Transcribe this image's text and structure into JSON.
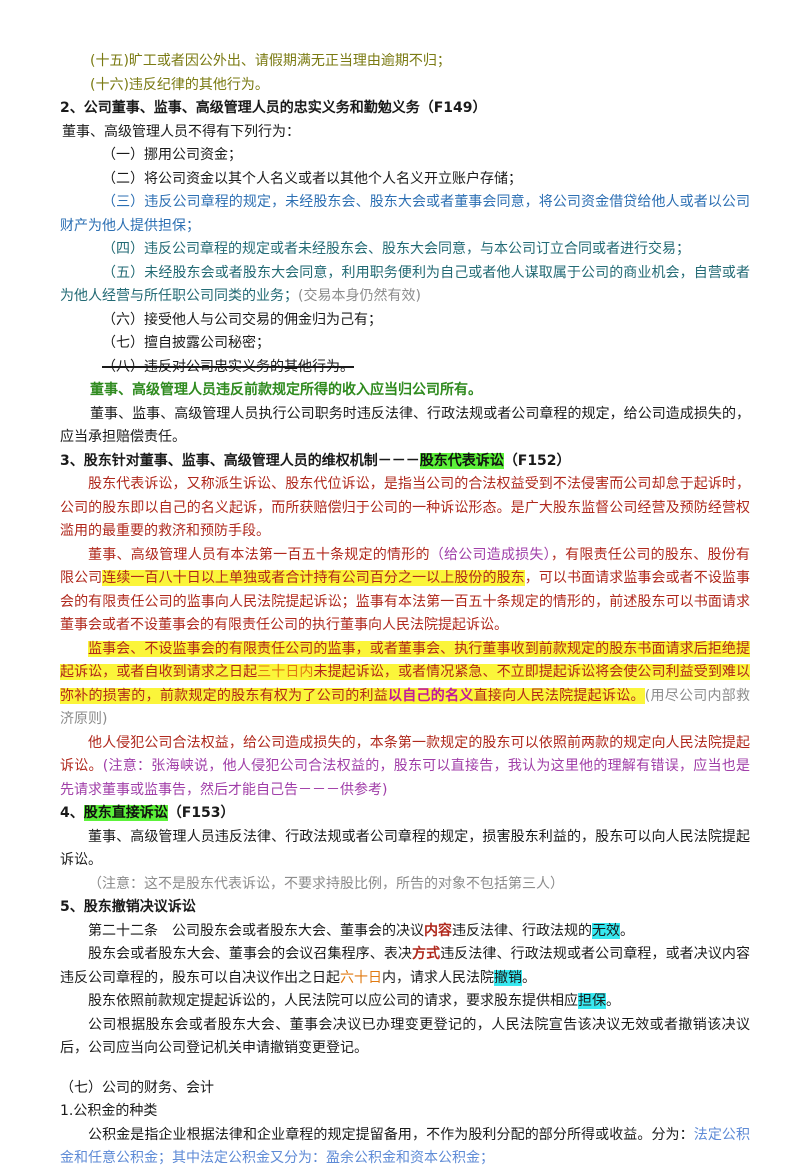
{
  "header_lines": [
    "(十五)旷工或者因公外出、请假期满无正当理由逾期不归；",
    "(十六)违反纪律的其他行为。"
  ],
  "s2": {
    "title": "2、公司董事、监事、高级管理人员的忠实义务和勤勉义务（F149）",
    "intro": "董事、高级管理人员不得有下列行为：",
    "i1": "（一）挪用公司资金；",
    "i2": "（二）将公司资金以其个人名义或者以其他个人名义开立账户存储；",
    "i3": "（三）违反公司章程的规定，未经股东会、股东大会或者董事会同意，将公司资金借贷给他人或者以公司财产为他人提供担保；",
    "i4": "（四）违反公司章程的规定或者未经股东会、股东大会同意，与本公司订立合同或者进行交易；",
    "i5": "（五）未经股东会或者股东大会同意，利用职务便利为自己或者他人谋取属于公司的商业机会，自营或者为他人经营与所任职公司同类的业务；",
    "i5_note": "(交易本身仍然有效)",
    "i6": "（六）接受他人与公司交易的佣金归为己有；",
    "i7": "（七）擅自披露公司秘密；",
    "i8": "（八）违反对公司忠实义务的其他行为。",
    "income": "董事、高级管理人员违反前款规定所得的收入应当归公司所有。",
    "liability": "董事、监事、高级管理人员执行公司职务时违反法律、行政法规或者公司章程的规定，给公司造成损失的，应当承担赔偿责任。"
  },
  "s3": {
    "title_a": "3、股东针对董事、监事、高级管理人员的维权机制－－－",
    "title_hl": "股东代表诉讼",
    "title_b": "（F152）",
    "def": "股东代表诉讼，又称派生诉讼、股东代位诉讼，是指当公司的合法权益受到不法侵害而公司却怠于起诉时，公司的股东即以自己的名义起诉，而所获赔偿归于公司的一种诉讼形态。是广大股东监督公司经营及预防经营权滥用的最重要的救济和预防手段。",
    "p2_a": "董事、高级管理人员有本法第一百五十条规定的情形的",
    "p2_b": "（给公司造成损失）",
    "p2_c": "，有限责任公司的股东、股份有限公司",
    "p2_d": "连续一百八十日以上单独或者合计持有公司百分之一以上股份的股东",
    "p2_e": "，可以书面请求监事会或者不设监事会的有限责任公司的监事向人民法院提起诉讼；监事有本法第一百五十条规定的情形的，前述股东可以书面请求董事会或者不设董事会的有限责任公司的执行董事向人民法院提起诉讼。",
    "p3_a": "监事会、不设监事会的有限责任公司的监事，或者董事会、执行董事收到前款规定的股东书面请求后拒绝提起诉讼，或者自收到请求之日起",
    "p3_b": "三十日内",
    "p3_c": "未提起诉讼，或者情况紧急、不立即提起诉讼将会使公司利益受到难以弥补的损害的，前款规定的股东有权为了公司的利益",
    "p3_d": "以自己的名义",
    "p3_e": "直接向人民法院提起诉讼。",
    "p3_note": "(用尽公司内部救济原则)",
    "p4_a": "他人侵犯公司合法权益，给公司造成损失的，本条第一款规定的股东可以依照前两款的规定向人民法院提起诉讼。",
    "p4_note": "(注意：张海峡说，他人侵犯公司合法权益的，股东可以直接告，我认为这里他的理解有错误，应当也是先请求董事或监事告，然后才能自己告－－－供参考)"
  },
  "s4": {
    "num": "4、",
    "title_hl": "股东直接诉讼",
    "title_b": "（F153）",
    "body": "董事、高级管理人员违反法律、行政法规或者公司章程的规定，损害股东利益的，股东可以向人民法院提起诉讼。",
    "note": "（注意：这不是股东代表诉讼，不要求持股比例，所告的对象不包括第三人）"
  },
  "s5": {
    "title": "5、股东撤销决议诉讼",
    "p1_a": "第二十二条　公司股东会或者股东大会、董事会的决议",
    "p1_b": "内容",
    "p1_c": "违反法律、行政法规的",
    "p1_d": "无效",
    "p1_e": "。",
    "p2_a": "股东会或者股东大会、董事会的会议召集程序、表决",
    "p2_b": "方式",
    "p2_c": "违反法律、行政法规或者公司章程，或者决议内容违反公司章程的，股东可以自决议作出之日起",
    "p2_d": "六十日",
    "p2_e": "内，请求人民法院",
    "p2_f": "撤销",
    "p2_g": "。",
    "p3_a": "股东依照前款规定提起诉讼的，人民法院可以应公司的请求，要求股东提供相应",
    "p3_b": "担保",
    "p3_c": "。",
    "p4": "公司根据股东会或者股东大会、董事会决议已办理变更登记的，人民法院宣告该决议无效或者撤销该决议后，公司应当向公司登记机关申请撤销变更登记。"
  },
  "s7": {
    "title": "（七）公司的财务、会计",
    "sub": "1.公积金的种类",
    "p_a": "公积金是指企业根据法律和企业章程的规定提留备用，不作为股利分配的部分所得或收益。分为：",
    "p_b": "法定公积金和任意公积金；其中法定公积金又分为：盈余公积金和资本公积金；"
  },
  "colors": {
    "highlight_green": "#5cf23a",
    "highlight_yellow": "#fbf53a",
    "highlight_cyan": "#38e8f0",
    "olive_text": "#7a7a12",
    "blue_text": "#2c6fb3",
    "red_text": "#b0281c"
  }
}
